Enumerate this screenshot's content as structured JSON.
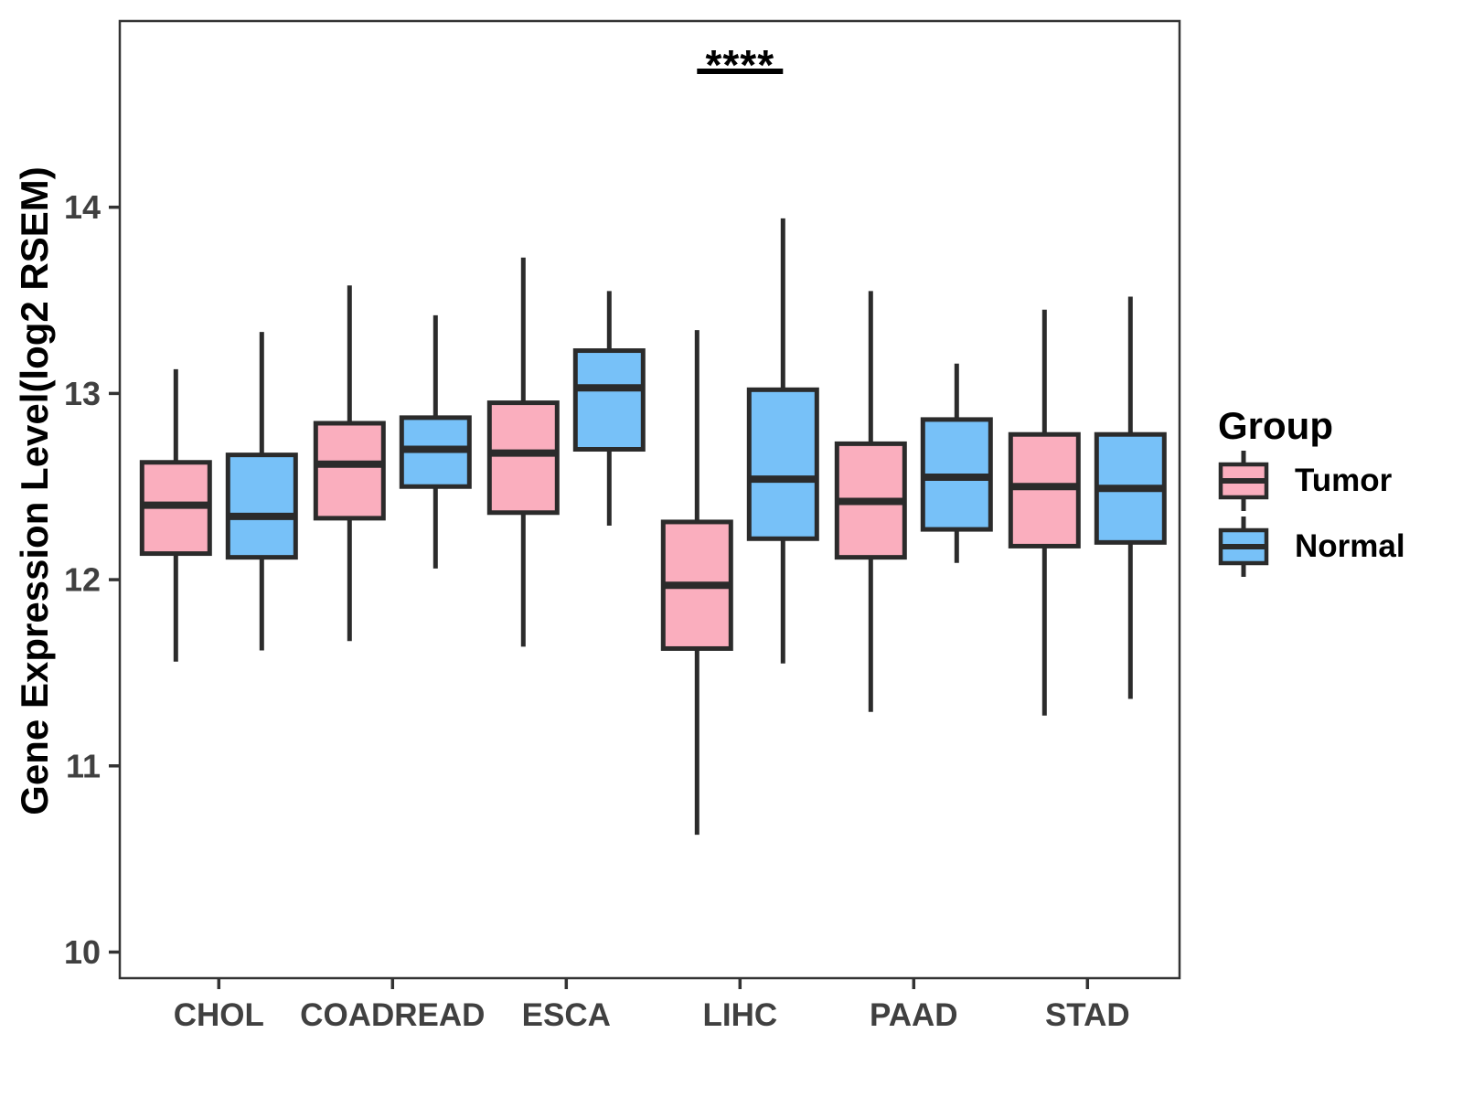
{
  "figure": {
    "y_tick_labels": [
      "10",
      "11",
      "12",
      "13",
      "14"
    ]
  },
  "legend": {
    "title": "Group",
    "items": [
      {
        "label": "Tumor",
        "color": "#FAAEBE"
      },
      {
        "label": "Normal",
        "color": "#77C1F8"
      }
    ]
  },
  "colors": {
    "tumor_fill": "#FAAEBE",
    "normal_fill": "#77C1F8",
    "box_line": "#2B2B2B",
    "panel_border": "#333333",
    "tick_text": "#404040"
  },
  "chart_data": {
    "type": "boxplot",
    "title": "",
    "xlabel": "",
    "ylabel": "Gene Expression Level(log2 RSEM)",
    "categories": [
      "CHOL",
      "COADREAD",
      "ESCA",
      "LIHC",
      "PAAD",
      "STAD"
    ],
    "yticks": [
      10,
      11,
      12,
      13,
      14
    ],
    "ylim": [
      9.86,
      15.0
    ],
    "grid": false,
    "legend_position": "right",
    "series": [
      {
        "name": "Tumor",
        "color": "#FAAEBE",
        "boxes": [
          {
            "low": 11.56,
            "q1": 12.14,
            "med": 12.4,
            "q3": 12.63,
            "high": 13.13
          },
          {
            "low": 11.67,
            "q1": 12.33,
            "med": 12.62,
            "q3": 12.84,
            "high": 13.58
          },
          {
            "low": 11.64,
            "q1": 12.36,
            "med": 12.68,
            "q3": 12.95,
            "high": 13.73
          },
          {
            "low": 10.63,
            "q1": 11.63,
            "med": 11.97,
            "q3": 12.31,
            "high": 13.34
          },
          {
            "low": 11.29,
            "q1": 12.12,
            "med": 12.42,
            "q3": 12.73,
            "high": 13.55
          },
          {
            "low": 11.27,
            "q1": 12.18,
            "med": 12.5,
            "q3": 12.78,
            "high": 13.45
          }
        ]
      },
      {
        "name": "Normal",
        "color": "#77C1F8",
        "boxes": [
          {
            "low": 11.62,
            "q1": 12.12,
            "med": 12.34,
            "q3": 12.67,
            "high": 13.33
          },
          {
            "low": 12.06,
            "q1": 12.5,
            "med": 12.7,
            "q3": 12.87,
            "high": 13.42
          },
          {
            "low": 12.29,
            "q1": 12.7,
            "med": 13.03,
            "q3": 13.23,
            "high": 13.55
          },
          {
            "low": 11.55,
            "q1": 12.22,
            "med": 12.54,
            "q3": 13.02,
            "high": 13.94
          },
          {
            "low": 12.09,
            "q1": 12.27,
            "med": 12.55,
            "q3": 12.86,
            "high": 13.16
          },
          {
            "low": 11.36,
            "q1": 12.2,
            "med": 12.49,
            "q3": 12.78,
            "high": 13.52
          }
        ]
      }
    ],
    "significance": {
      "category": "LIHC",
      "label": "****",
      "bar_y": 14.73,
      "connects": [
        "Tumor",
        "Normal"
      ]
    }
  }
}
